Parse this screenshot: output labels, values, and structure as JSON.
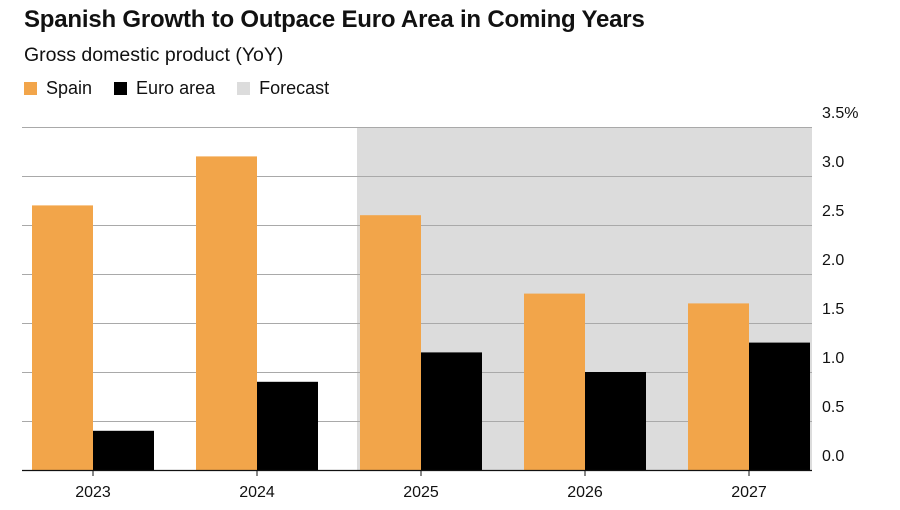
{
  "chart_data": {
    "type": "bar",
    "title": "Spanish Growth to Outpace Euro Area in Coming Years",
    "subtitle": "Gross domestic product (YoY)",
    "categories": [
      "2023",
      "2024",
      "2025",
      "2026",
      "2027"
    ],
    "series": [
      {
        "name": "Spain",
        "color": "#f2a54a",
        "values": [
          2.7,
          3.2,
          2.6,
          1.8,
          1.7
        ]
      },
      {
        "name": "Euro area",
        "color": "#000000",
        "values": [
          0.4,
          0.9,
          1.2,
          1.0,
          1.3
        ]
      }
    ],
    "forecast": {
      "label": "Forecast",
      "color": "#dcdcdc",
      "start_category": "2025"
    },
    "yticks": [
      "0.0",
      "0.5",
      "1.0",
      "1.5",
      "2.0",
      "2.5",
      "3.0",
      "3.5%"
    ],
    "ylim": [
      0,
      3.5
    ],
    "xlabel": "",
    "ylabel": "",
    "grid": true,
    "legend_position": "top-left"
  }
}
